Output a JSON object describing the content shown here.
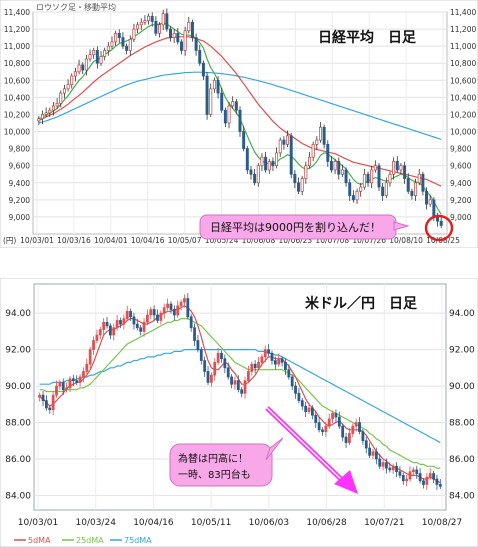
{
  "chart_data": [
    {
      "type": "candlestick",
      "title": "日経平均　日足",
      "subtitle": "ロウソク足・移動平均",
      "y_unit_label": "(円)",
      "annotation": "日経平均は9000円を割り込んだ！",
      "ylim": [
        8800,
        11400
      ],
      "yticks": [
        9000,
        9200,
        9400,
        9600,
        9800,
        10000,
        10200,
        10400,
        10600,
        10800,
        11000,
        11200,
        11400
      ],
      "ytick_labels": [
        "9,000",
        "9,200",
        "9,400",
        "9,600",
        "9,800",
        "10,000",
        "10,200",
        "10,400",
        "10,600",
        "10,800",
        "11,000",
        "11,200",
        "11,400"
      ],
      "xtick_labels": [
        "10/03/01",
        "10/03/16",
        "10/04/01",
        "10/04/16",
        "10/05/07",
        "10/05/24",
        "10/06/08",
        "10/06/23",
        "10/07/08",
        "10/07/26",
        "10/08/10",
        "10/08/25"
      ],
      "grid": true,
      "colors": {
        "up": "#ffffff",
        "down": "#2a5b8a",
        "wick": "#333333",
        "ma_short": "#4caf50",
        "ma_mid": "#e05050",
        "ma_long": "#3aa7e0",
        "callout": "#f8a8e8",
        "circle": "#e02020"
      },
      "close": [
        10150,
        10200,
        10220,
        10250,
        10300,
        10330,
        10450,
        10500,
        10550,
        10650,
        10700,
        10780,
        10720,
        10850,
        10900,
        10950,
        10800,
        10880,
        10950,
        11000,
        11050,
        11150,
        11100,
        11000,
        10950,
        11080,
        11200,
        11250,
        11280,
        11300,
        11350,
        11290,
        11150,
        11250,
        11380,
        11200,
        11100,
        11150,
        11050,
        10950,
        11180,
        11280,
        11100,
        10950,
        10800,
        10650,
        10200,
        10500,
        10600,
        10450,
        10250,
        10100,
        10300,
        10350,
        10250,
        10000,
        9800,
        9550,
        9500,
        9400,
        9600,
        9700,
        9550,
        9650,
        9600,
        9750,
        9900,
        9850,
        9950,
        9500,
        9400,
        9300,
        9450,
        9600,
        9700,
        9850,
        9900,
        10050,
        9850,
        9650,
        9550,
        9650,
        9500,
        9550,
        9400,
        9250,
        9200,
        9300,
        9350,
        9500,
        9400,
        9550,
        9600,
        9350,
        9250,
        9400,
        9500,
        9650,
        9550,
        9600,
        9450,
        9300,
        9250,
        9400,
        9500,
        9300,
        9150,
        9200,
        9000,
        8950,
        8900
      ],
      "ma_short": [
        10150,
        10170,
        10190,
        10215,
        10240,
        10270,
        10320,
        10370,
        10420,
        10480,
        10540,
        10600,
        10640,
        10700,
        10760,
        10820,
        10840,
        10870,
        10900,
        10930,
        10960,
        11000,
        11030,
        11050,
        11060,
        11080,
        11110,
        11140,
        11170,
        11200,
        11230,
        11250,
        11250,
        11260,
        11270,
        11260,
        11230,
        11200,
        11170,
        11140,
        11130,
        11130,
        11120,
        11090,
        11040,
        10980,
        10850,
        10750,
        10680,
        10600,
        10500,
        10400,
        10330,
        10270,
        10220,
        10150,
        10050,
        9950,
        9850,
        9760,
        9700,
        9660,
        9630,
        9620,
        9620,
        9640,
        9680,
        9700,
        9730,
        9710,
        9670,
        9620,
        9580,
        9560,
        9570,
        9600,
        9650,
        9720,
        9750,
        9740,
        9700,
        9670,
        9630,
        9600,
        9560,
        9500,
        9440,
        9400,
        9380,
        9400,
        9420,
        9440,
        9460,
        9450,
        9430,
        9420,
        9430,
        9460,
        9480,
        9500,
        9490,
        9460,
        9430,
        9410,
        9400,
        9360,
        9300,
        9250,
        9180,
        9100,
        9030
      ],
      "ma_mid": [
        10130,
        10150,
        10170,
        10190,
        10210,
        10235,
        10260,
        10290,
        10320,
        10355,
        10390,
        10425,
        10460,
        10500,
        10540,
        10580,
        10615,
        10650,
        10680,
        10710,
        10740,
        10770,
        10800,
        10830,
        10860,
        10890,
        10915,
        10940,
        10965,
        10990,
        11010,
        11030,
        11050,
        11065,
        11080,
        11095,
        11100,
        11105,
        11110,
        11110,
        11110,
        11108,
        11100,
        11090,
        11075,
        11060,
        11030,
        11000,
        10960,
        10920,
        10880,
        10830,
        10780,
        10730,
        10680,
        10620,
        10560,
        10500,
        10440,
        10380,
        10320,
        10270,
        10220,
        10170,
        10120,
        10080,
        10040,
        10010,
        9980,
        9950,
        9920,
        9890,
        9860,
        9840,
        9820,
        9800,
        9790,
        9780,
        9770,
        9760,
        9750,
        9740,
        9720,
        9700,
        9680,
        9660,
        9640,
        9630,
        9620,
        9610,
        9600,
        9590,
        9580,
        9570,
        9560,
        9550,
        9540,
        9530,
        9520,
        9510,
        9500,
        9490,
        9480,
        9470,
        9460,
        9450,
        9440,
        9420,
        9400,
        9380,
        9360
      ],
      "ma_long": [
        10100,
        10110,
        10125,
        10140,
        10155,
        10170,
        10190,
        10210,
        10230,
        10250,
        10270,
        10290,
        10310,
        10330,
        10350,
        10370,
        10390,
        10410,
        10430,
        10450,
        10470,
        10490,
        10510,
        10530,
        10545,
        10560,
        10575,
        10590,
        10600,
        10610,
        10620,
        10630,
        10640,
        10650,
        10660,
        10665,
        10670,
        10675,
        10680,
        10685,
        10690,
        10692,
        10694,
        10695,
        10695,
        10694,
        10692,
        10690,
        10686,
        10682,
        10678,
        10672,
        10666,
        10660,
        10652,
        10644,
        10636,
        10626,
        10616,
        10606,
        10595,
        10584,
        10572,
        10560,
        10548,
        10535,
        10522,
        10509,
        10496,
        10482,
        10468,
        10454,
        10440,
        10426,
        10412,
        10398,
        10384,
        10370,
        10356,
        10342,
        10328,
        10314,
        10300,
        10286,
        10272,
        10258,
        10244,
        10230,
        10216,
        10202,
        10188,
        10174,
        10160,
        10146,
        10132,
        10118,
        10104,
        10090,
        10076,
        10062,
        10048,
        10034,
        10020,
        10006,
        9992,
        9978,
        9964,
        9950,
        9936,
        9922,
        9908
      ]
    },
    {
      "type": "candlestick",
      "title": "米ドル／円　日足",
      "annotation_lines": [
        "為替は円高に！",
        "一時、83円台も"
      ],
      "ylim": [
        83.2,
        95.6
      ],
      "yticks": [
        84,
        86,
        88,
        90,
        92,
        94
      ],
      "ytick_labels": [
        "84.00",
        "86.00",
        "88.00",
        "90.00",
        "92.00",
        "94.00"
      ],
      "xtick_labels": [
        "10/03/01",
        "10/03/24",
        "10/04/16",
        "10/05/11",
        "10/06/03",
        "10/06/28",
        "10/07/21",
        "10/08/27"
      ],
      "legend": [
        "5dMA",
        "25dMA",
        "75dMA"
      ],
      "grid": true,
      "colors": {
        "up": "#e05050",
        "down": "#2a5b8a",
        "ma5": "#e05050",
        "ma25": "#7cc44c",
        "ma75": "#3aa7e0",
        "arrow": "#ff33ff",
        "callout": "#f8a8e8"
      },
      "close": [
        89.5,
        89.2,
        88.8,
        88.7,
        89.5,
        90.0,
        90.2,
        89.8,
        89.9,
        90.4,
        90.3,
        90.2,
        90.5,
        90.8,
        91.2,
        92.0,
        92.5,
        92.8,
        93.1,
        93.5,
        93.3,
        92.8,
        93.2,
        93.6,
        93.4,
        93.7,
        94.1,
        93.8,
        93.4,
        93.2,
        93.0,
        93.5,
        93.9,
        94.2,
        93.9,
        93.6,
        94.0,
        94.3,
        94.5,
        94.2,
        93.9,
        94.4,
        94.6,
        94.8,
        93.8,
        93.2,
        92.5,
        92.0,
        91.4,
        90.8,
        90.2,
        90.6,
        91.3,
        91.8,
        91.5,
        91.0,
        90.5,
        90.1,
        90.3,
        89.8,
        89.6,
        90.3,
        90.8,
        91.2,
        91.0,
        91.3,
        91.6,
        92.0,
        91.8,
        91.4,
        91.2,
        91.5,
        91.3,
        90.9,
        90.5,
        90.0,
        89.6,
        89.2,
        88.9,
        88.6,
        88.8,
        88.4,
        88.0,
        87.6,
        87.5,
        87.8,
        88.2,
        88.5,
        88.3,
        87.8,
        87.2,
        86.9,
        87.4,
        87.8,
        88.0,
        87.5,
        87.0,
        86.6,
        86.2,
        86.4,
        86.0,
        85.6,
        85.8,
        85.5,
        85.4,
        85.6,
        85.3,
        85.1,
        84.8,
        84.9,
        85.3,
        85.4,
        85.2,
        84.8,
        84.6,
        85.0,
        85.2,
        84.9,
        84.6,
        84.5
      ],
      "ma5": [
        89.4,
        89.3,
        89.1,
        88.9,
        89.0,
        89.2,
        89.4,
        89.6,
        89.9,
        90.0,
        90.1,
        90.2,
        90.2,
        90.4,
        90.6,
        90.9,
        91.3,
        91.8,
        92.3,
        92.8,
        93.0,
        93.1,
        93.1,
        93.2,
        93.3,
        93.4,
        93.6,
        93.7,
        93.7,
        93.6,
        93.5,
        93.4,
        93.4,
        93.5,
        93.6,
        93.8,
        93.9,
        94.0,
        94.1,
        94.1,
        94.2,
        94.2,
        94.3,
        94.4,
        94.3,
        94.1,
        93.8,
        93.3,
        92.7,
        92.0,
        91.4,
        91.0,
        90.9,
        90.9,
        91.1,
        91.3,
        91.2,
        90.9,
        90.7,
        90.4,
        90.1,
        90.1,
        90.2,
        90.4,
        90.6,
        90.9,
        91.2,
        91.4,
        91.6,
        91.6,
        91.5,
        91.5,
        91.5,
        91.3,
        91.1,
        90.8,
        90.5,
        90.1,
        89.7,
        89.3,
        89.0,
        88.8,
        88.6,
        88.3,
        88.1,
        87.9,
        87.8,
        87.9,
        88.0,
        88.1,
        87.9,
        87.7,
        87.6,
        87.6,
        87.6,
        87.6,
        87.5,
        87.3,
        87.0,
        86.7,
        86.4,
        86.2,
        86.0,
        85.9,
        85.7,
        85.6,
        85.5,
        85.4,
        85.3,
        85.2,
        85.1,
        85.1,
        85.1,
        85.0,
        84.9,
        84.9,
        85.0,
        84.9,
        84.8,
        84.7
      ],
      "ma25": [
        89.8,
        89.8,
        89.7,
        89.7,
        89.7,
        89.7,
        89.7,
        89.7,
        89.8,
        89.8,
        89.8,
        89.8,
        89.9,
        89.9,
        90.0,
        90.1,
        90.3,
        90.5,
        90.7,
        90.9,
        91.1,
        91.3,
        91.5,
        91.7,
        91.9,
        92.1,
        92.3,
        92.4,
        92.5,
        92.6,
        92.7,
        92.8,
        92.9,
        93.0,
        93.1,
        93.2,
        93.3,
        93.4,
        93.5,
        93.5,
        93.6,
        93.6,
        93.7,
        93.7,
        93.7,
        93.6,
        93.5,
        93.4,
        93.3,
        93.1,
        92.9,
        92.7,
        92.5,
        92.3,
        92.1,
        91.9,
        91.7,
        91.5,
        91.3,
        91.2,
        91.1,
        91.0,
        90.9,
        90.9,
        90.9,
        90.9,
        90.9,
        90.9,
        90.9,
        90.9,
        90.9,
        90.9,
        90.9,
        90.8,
        90.7,
        90.6,
        90.5,
        90.3,
        90.1,
        89.9,
        89.7,
        89.5,
        89.3,
        89.1,
        88.9,
        88.8,
        88.7,
        88.6,
        88.5,
        88.4,
        88.3,
        88.2,
        88.1,
        88.0,
        87.9,
        87.8,
        87.7,
        87.6,
        87.4,
        87.3,
        87.1,
        87.0,
        86.8,
        86.7,
        86.5,
        86.4,
        86.3,
        86.2,
        86.1,
        86.0,
        85.9,
        85.8,
        85.8,
        85.7,
        85.7,
        85.6,
        85.6,
        85.6,
        85.5,
        85.5
      ],
      "ma75": [
        90.1,
        90.1,
        90.1,
        90.1,
        90.2,
        90.2,
        90.2,
        90.2,
        90.3,
        90.3,
        90.3,
        90.4,
        90.4,
        90.5,
        90.5,
        90.6,
        90.6,
        90.7,
        90.8,
        90.8,
        90.9,
        91.0,
        91.0,
        91.1,
        91.1,
        91.2,
        91.3,
        91.3,
        91.4,
        91.4,
        91.5,
        91.5,
        91.6,
        91.6,
        91.6,
        91.7,
        91.7,
        91.8,
        91.8,
        91.8,
        91.9,
        91.9,
        91.9,
        92.0,
        92.0,
        92.0,
        92.0,
        92.0,
        92.0,
        92.0,
        92.0,
        92.0,
        92.0,
        92.0,
        92.0,
        92.0,
        92.0,
        92.0,
        92.0,
        92.0,
        92.0,
        92.0,
        92.0,
        92.0,
        92.0,
        91.9,
        91.9,
        91.9,
        91.8,
        91.8,
        91.7,
        91.7,
        91.6,
        91.5,
        91.4,
        91.3,
        91.2,
        91.1,
        91.0,
        90.9,
        90.8,
        90.7,
        90.6,
        90.5,
        90.4,
        90.3,
        90.2,
        90.1,
        90.0,
        89.9,
        89.8,
        89.7,
        89.6,
        89.5,
        89.4,
        89.3,
        89.2,
        89.1,
        89.0,
        88.9,
        88.8,
        88.7,
        88.6,
        88.5,
        88.4,
        88.3,
        88.2,
        88.1,
        88.0,
        87.9,
        87.8,
        87.7,
        87.6,
        87.5,
        87.4,
        87.3,
        87.2,
        87.1,
        87.0,
        86.9
      ]
    }
  ]
}
